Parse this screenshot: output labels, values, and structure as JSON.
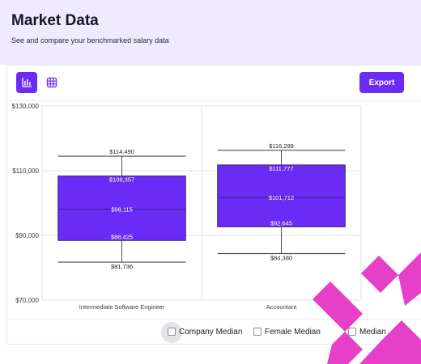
{
  "header": {
    "title": "Market Data",
    "subtitle": "See and compare your benchmarked salary data"
  },
  "toolbar": {
    "chart_view_icon": "bar-chart-icon",
    "table_view_icon": "grid-icon",
    "export_label": "Export"
  },
  "colors": {
    "accent": "#6a2cf5",
    "header_bg": "#efebfd",
    "decoration": "#e63fc8"
  },
  "legend": {
    "items": [
      "Company Median",
      "Female Median",
      "Median"
    ]
  },
  "chart_data": {
    "type": "boxplot",
    "categories": [
      "Intermediate Software Engineer",
      "Accountant"
    ],
    "ylim": [
      70000,
      130000
    ],
    "yticks": [
      {
        "value": 70000,
        "label": "$70,000"
      },
      {
        "value": 90000,
        "label": "$90,000"
      },
      {
        "value": 110000,
        "label": "$110,000"
      },
      {
        "value": 130000,
        "label": "$130,000"
      }
    ],
    "boxes": [
      {
        "category": "Intermediate Software Engineer",
        "min": 81736,
        "q1": 88425,
        "median": 98115,
        "q3": 108357,
        "max": 114490,
        "labels": {
          "min": "$81,736",
          "q1": "$88,425",
          "median": "$98,115",
          "q3": "$108,357",
          "max": "$114,490"
        }
      },
      {
        "category": "Accountant",
        "min": 84380,
        "q1": 92645,
        "median": 101712,
        "q3": 111777,
        "max": 116299,
        "labels": {
          "min": "$84,380",
          "q1": "$92,645",
          "median": "$101,712",
          "q3": "$111,777",
          "max": "$116,299"
        }
      }
    ],
    "grid": true
  }
}
